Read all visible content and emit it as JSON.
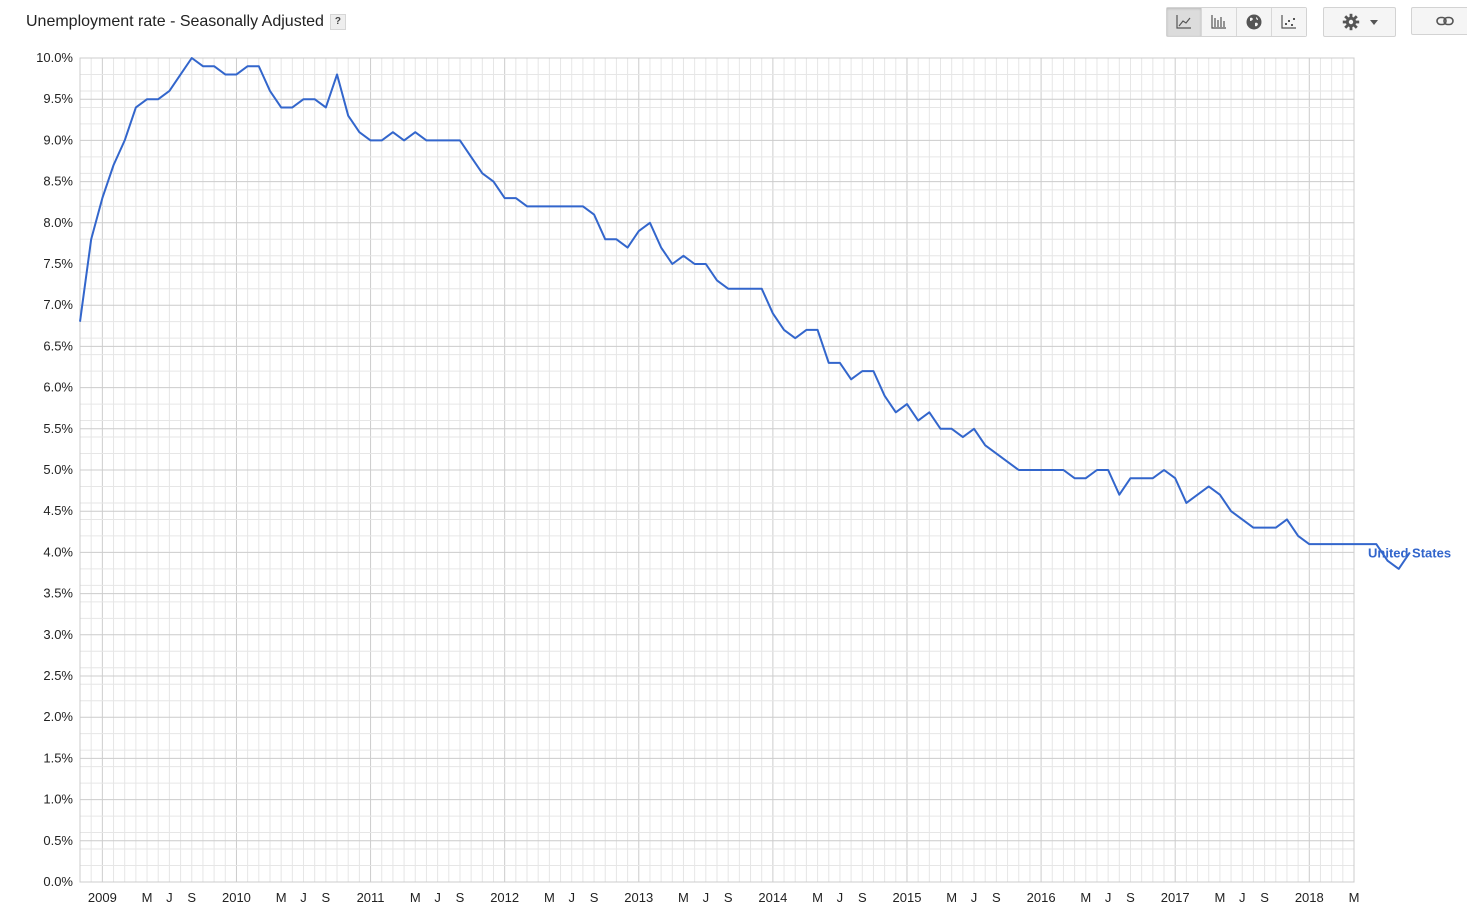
{
  "header": {
    "title": "Unemployment rate - Seasonally Adjusted",
    "help_label": "?"
  },
  "toolbar": {
    "buttons": [
      {
        "icon": "line-chart-icon",
        "active": true
      },
      {
        "icon": "bar-chart-icon",
        "active": false
      },
      {
        "icon": "globe-icon",
        "active": false
      },
      {
        "icon": "scatter-chart-icon",
        "active": false
      }
    ],
    "settings_icon": "gear-icon",
    "dropdown_icon": "caret-down-icon",
    "link_icon": "link-icon"
  },
  "colors": {
    "series": "#3366cc",
    "grid_major": "#cccccc",
    "grid_minor": "#e6e6e6",
    "axis_text": "#222222"
  },
  "chart_data": {
    "type": "line",
    "title": "Unemployment rate - Seasonally Adjusted",
    "xlabel": "",
    "ylabel": "",
    "x_start": "2008-11",
    "x_end": "2018-05",
    "ylim": [
      0,
      10
    ],
    "y_tick_labels": [
      "0.0%",
      "0.5%",
      "1.0%",
      "1.5%",
      "2.0%",
      "2.5%",
      "3.0%",
      "3.5%",
      "4.0%",
      "4.5%",
      "5.0%",
      "5.5%",
      "6.0%",
      "6.5%",
      "7.0%",
      "7.5%",
      "8.0%",
      "8.5%",
      "9.0%",
      "9.5%",
      "10.0%"
    ],
    "x_tick_labels": [
      {
        "date": "2009-01",
        "label": "2009"
      },
      {
        "date": "2009-05",
        "label": "M"
      },
      {
        "date": "2009-07",
        "label": "J"
      },
      {
        "date": "2009-09",
        "label": "S"
      },
      {
        "date": "2010-01",
        "label": "2010"
      },
      {
        "date": "2010-05",
        "label": "M"
      },
      {
        "date": "2010-07",
        "label": "J"
      },
      {
        "date": "2010-09",
        "label": "S"
      },
      {
        "date": "2011-01",
        "label": "2011"
      },
      {
        "date": "2011-05",
        "label": "M"
      },
      {
        "date": "2011-07",
        "label": "J"
      },
      {
        "date": "2011-09",
        "label": "S"
      },
      {
        "date": "2012-01",
        "label": "2012"
      },
      {
        "date": "2012-05",
        "label": "M"
      },
      {
        "date": "2012-07",
        "label": "J"
      },
      {
        "date": "2012-09",
        "label": "S"
      },
      {
        "date": "2013-01",
        "label": "2013"
      },
      {
        "date": "2013-05",
        "label": "M"
      },
      {
        "date": "2013-07",
        "label": "J"
      },
      {
        "date": "2013-09",
        "label": "S"
      },
      {
        "date": "2014-01",
        "label": "2014"
      },
      {
        "date": "2014-05",
        "label": "M"
      },
      {
        "date": "2014-07",
        "label": "J"
      },
      {
        "date": "2014-09",
        "label": "S"
      },
      {
        "date": "2015-01",
        "label": "2015"
      },
      {
        "date": "2015-05",
        "label": "M"
      },
      {
        "date": "2015-07",
        "label": "J"
      },
      {
        "date": "2015-09",
        "label": "S"
      },
      {
        "date": "2016-01",
        "label": "2016"
      },
      {
        "date": "2016-05",
        "label": "M"
      },
      {
        "date": "2016-07",
        "label": "J"
      },
      {
        "date": "2016-09",
        "label": "S"
      },
      {
        "date": "2017-01",
        "label": "2017"
      },
      {
        "date": "2017-05",
        "label": "M"
      },
      {
        "date": "2017-07",
        "label": "J"
      },
      {
        "date": "2017-09",
        "label": "S"
      },
      {
        "date": "2018-01",
        "label": "2018"
      },
      {
        "date": "2018-05",
        "label": "M"
      }
    ],
    "grid": true,
    "legend": "inline-right",
    "series": [
      {
        "name": "United States",
        "values": [
          6.8,
          7.8,
          8.3,
          8.7,
          9.0,
          9.4,
          9.5,
          9.5,
          9.6,
          9.8,
          10.0,
          9.9,
          9.9,
          9.8,
          9.8,
          9.9,
          9.9,
          9.6,
          9.4,
          9.4,
          9.5,
          9.5,
          9.4,
          9.8,
          9.3,
          9.1,
          9.0,
          9.0,
          9.1,
          9.0,
          9.1,
          9.0,
          9.0,
          9.0,
          9.0,
          8.8,
          8.6,
          8.5,
          8.3,
          8.3,
          8.2,
          8.2,
          8.2,
          8.2,
          8.2,
          8.2,
          8.1,
          7.8,
          7.8,
          7.7,
          7.9,
          8.0,
          7.7,
          7.5,
          7.6,
          7.5,
          7.5,
          7.3,
          7.2,
          7.2,
          7.2,
          7.2,
          6.9,
          6.7,
          6.6,
          6.7,
          6.7,
          6.3,
          6.3,
          6.1,
          6.2,
          6.2,
          5.9,
          5.7,
          5.8,
          5.6,
          5.7,
          5.5,
          5.5,
          5.4,
          5.5,
          5.3,
          5.2,
          5.1,
          5.0,
          5.0,
          5.0,
          5.0,
          5.0,
          4.9,
          4.9,
          5.0,
          5.0,
          4.7,
          4.9,
          4.9,
          4.9,
          5.0,
          4.9,
          4.6,
          4.7,
          4.8,
          4.7,
          4.5,
          4.4,
          4.3,
          4.3,
          4.3,
          4.4,
          4.2,
          4.1,
          4.1,
          4.1,
          4.1,
          4.1,
          4.1,
          4.1,
          3.9,
          3.8,
          4.0
        ]
      }
    ]
  }
}
